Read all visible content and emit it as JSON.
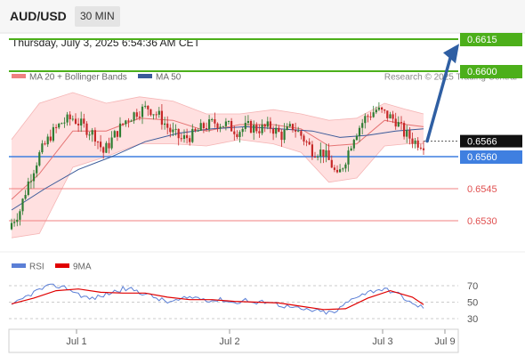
{
  "header": {
    "symbol": "AUD/USD",
    "timeframe": "30 MIN",
    "datetime": "Thursday, July 3, 2025 6:54:36 AM CET"
  },
  "credit": "Research © 2025 Trading Central",
  "colors": {
    "bull": "#2e7d32",
    "bear": "#c62828",
    "bollinger_fill": "#ffd6d6",
    "ma20": "#e57373",
    "ma50": "#3a5a99",
    "target_line": "#4caf1a",
    "pivot_line": "#3f7fe0",
    "support_line": "#f08080",
    "arrow": "#2f5fa3",
    "rsi": "#5b7fd6",
    "rsi_ma": "#e00000"
  },
  "chart_data": [
    {
      "type": "candlestick",
      "title": "AUD/USD 30 MIN",
      "legend": [
        "MA 20 + Bollinger Bands",
        "MA 50"
      ],
      "ylim": [
        0.6524,
        0.6622
      ],
      "x_ticks": [
        "Jul 1",
        "Jul 2",
        "Jul 3",
        "Jul 9"
      ],
      "current_price": "0.6566",
      "levels": [
        {
          "value": 0.6615,
          "label": "0.6615",
          "role": "target"
        },
        {
          "value": 0.66,
          "label": "0.6600",
          "role": "target"
        },
        {
          "value": 0.656,
          "label": "0.6560",
          "role": "pivot"
        },
        {
          "value": 0.6545,
          "label": "0.6545",
          "role": "support"
        },
        {
          "value": 0.653,
          "label": "0.6530",
          "role": "support"
        }
      ],
      "arrow": {
        "from": 0.6566,
        "to": 0.6612,
        "direction": "up"
      },
      "path_anchors": [
        [
          0,
          0.6529
        ],
        [
          3,
          0.6535
        ],
        [
          6,
          0.6548
        ],
        [
          10,
          0.6561
        ],
        [
          14,
          0.657
        ],
        [
          18,
          0.6576
        ],
        [
          22,
          0.6578
        ],
        [
          26,
          0.6574
        ],
        [
          30,
          0.657
        ],
        [
          33,
          0.6562
        ],
        [
          37,
          0.657
        ],
        [
          41,
          0.6577
        ],
        [
          45,
          0.6581
        ],
        [
          49,
          0.6583
        ],
        [
          53,
          0.6579
        ],
        [
          57,
          0.6572
        ],
        [
          61,
          0.6568
        ],
        [
          65,
          0.657
        ],
        [
          69,
          0.6574
        ],
        [
          73,
          0.6576
        ],
        [
          77,
          0.6575
        ],
        [
          81,
          0.6572
        ],
        [
          85,
          0.6574
        ],
        [
          89,
          0.6573
        ],
        [
          93,
          0.6574
        ],
        [
          97,
          0.657
        ],
        [
          101,
          0.6574
        ],
        [
          104,
          0.657
        ],
        [
          108,
          0.6563
        ],
        [
          112,
          0.6562
        ],
        [
          115,
          0.6556
        ],
        [
          117,
          0.655
        ],
        [
          120,
          0.6559
        ],
        [
          123,
          0.657
        ],
        [
          127,
          0.6578
        ],
        [
          131,
          0.6582
        ],
        [
          134,
          0.658
        ],
        [
          138,
          0.6577
        ],
        [
          141,
          0.6571
        ],
        [
          145,
          0.6567
        ],
        [
          148,
          0.6566
        ]
      ],
      "ma20": [
        [
          0,
          0.654
        ],
        [
          10,
          0.6552
        ],
        [
          22,
          0.6572
        ],
        [
          34,
          0.6572
        ],
        [
          46,
          0.6578
        ],
        [
          58,
          0.6577
        ],
        [
          70,
          0.6572
        ],
        [
          82,
          0.6575
        ],
        [
          94,
          0.6575
        ],
        [
          104,
          0.6573
        ],
        [
          114,
          0.6565
        ],
        [
          124,
          0.6566
        ],
        [
          134,
          0.6577
        ],
        [
          142,
          0.6575
        ],
        [
          148,
          0.6574
        ]
      ],
      "ma50": [
        [
          0,
          0.6535
        ],
        [
          12,
          0.6545
        ],
        [
          24,
          0.6554
        ],
        [
          36,
          0.656
        ],
        [
          48,
          0.6567
        ],
        [
          60,
          0.6571
        ],
        [
          72,
          0.6573
        ],
        [
          84,
          0.6574
        ],
        [
          96,
          0.6573
        ],
        [
          108,
          0.6572
        ],
        [
          118,
          0.6569
        ],
        [
          128,
          0.657
        ],
        [
          138,
          0.6572
        ],
        [
          148,
          0.6573
        ]
      ],
      "bollinger_upper": [
        [
          0,
          0.6568
        ],
        [
          10,
          0.6585
        ],
        [
          22,
          0.659
        ],
        [
          34,
          0.6585
        ],
        [
          46,
          0.6588
        ],
        [
          58,
          0.6586
        ],
        [
          70,
          0.658
        ],
        [
          82,
          0.658
        ],
        [
          94,
          0.6582
        ],
        [
          104,
          0.658
        ],
        [
          114,
          0.6577
        ],
        [
          124,
          0.6578
        ],
        [
          134,
          0.6585
        ],
        [
          142,
          0.6582
        ],
        [
          148,
          0.658
        ]
      ],
      "bollinger_lower": [
        [
          0,
          0.6522
        ],
        [
          10,
          0.6524
        ],
        [
          22,
          0.6555
        ],
        [
          34,
          0.656
        ],
        [
          46,
          0.6566
        ],
        [
          58,
          0.6566
        ],
        [
          70,
          0.6565
        ],
        [
          82,
          0.6568
        ],
        [
          94,
          0.6566
        ],
        [
          104,
          0.6562
        ],
        [
          114,
          0.6548
        ],
        [
          124,
          0.655
        ],
        [
          134,
          0.6565
        ],
        [
          142,
          0.6566
        ],
        [
          148,
          0.6566
        ]
      ]
    },
    {
      "type": "line",
      "title": "RSI",
      "legend": [
        "RSI",
        "9MA"
      ],
      "ylim": [
        20,
        80
      ],
      "y_ticks": [
        70,
        50,
        30
      ],
      "series": [
        {
          "name": "RSI",
          "points": [
            [
              0,
              45
            ],
            [
              4,
              54
            ],
            [
              8,
              62
            ],
            [
              12,
              68
            ],
            [
              16,
              70
            ],
            [
              20,
              67
            ],
            [
              24,
              60
            ],
            [
              28,
              54
            ],
            [
              32,
              57
            ],
            [
              36,
              62
            ],
            [
              40,
              66
            ],
            [
              44,
              65
            ],
            [
              48,
              60
            ],
            [
              52,
              55
            ],
            [
              56,
              50
            ],
            [
              60,
              52
            ],
            [
              64,
              56
            ],
            [
              68,
              55
            ],
            [
              72,
              52
            ],
            [
              76,
              53
            ],
            [
              80,
              49
            ],
            [
              84,
              53
            ],
            [
              88,
              48
            ],
            [
              92,
              52
            ],
            [
              96,
              47
            ],
            [
              100,
              44
            ],
            [
              104,
              41
            ],
            [
              108,
              40
            ],
            [
              112,
              38
            ],
            [
              116,
              37
            ],
            [
              120,
              48
            ],
            [
              124,
              58
            ],
            [
              128,
              62
            ],
            [
              132,
              66
            ],
            [
              136,
              64
            ],
            [
              140,
              58
            ],
            [
              144,
              47
            ],
            [
              148,
              44
            ]
          ]
        },
        {
          "name": "9MA",
          "points": [
            [
              0,
              48
            ],
            [
              8,
              55
            ],
            [
              16,
              64
            ],
            [
              24,
              66
            ],
            [
              32,
              62
            ],
            [
              40,
              61
            ],
            [
              48,
              61
            ],
            [
              56,
              56
            ],
            [
              64,
              53
            ],
            [
              72,
              53
            ],
            [
              80,
              51
            ],
            [
              88,
              50
            ],
            [
              96,
              49
            ],
            [
              104,
              45
            ],
            [
              112,
              41
            ],
            [
              120,
              42
            ],
            [
              128,
              55
            ],
            [
              136,
              64
            ],
            [
              144,
              56
            ],
            [
              148,
              47
            ]
          ]
        }
      ]
    }
  ]
}
